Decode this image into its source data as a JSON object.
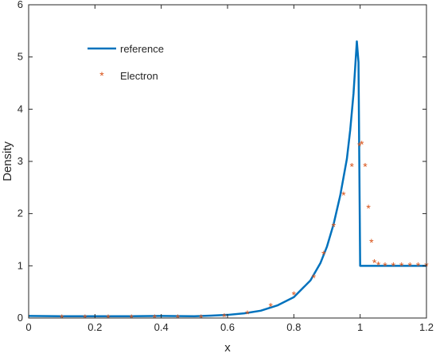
{
  "chart_data": {
    "type": "line",
    "title": "",
    "xlabel": "x",
    "ylabel": "Density",
    "xlim": [
      0,
      1.2
    ],
    "ylim": [
      0,
      6
    ],
    "xticks": [
      0,
      0.2,
      0.4,
      0.6,
      0.8,
      1,
      1.2
    ],
    "xtick_labels": [
      "0",
      "0.2",
      "0.4",
      "0.6",
      "0.8",
      "1",
      "1.2"
    ],
    "yticks": [
      0,
      1,
      2,
      3,
      4,
      5,
      6
    ],
    "ytick_labels": [
      "0",
      "1",
      "2",
      "3",
      "4",
      "5",
      "6"
    ],
    "grid": false,
    "legend_position": "top-left",
    "series": [
      {
        "name": "reference",
        "style": "line",
        "color": "#0072BD",
        "x": [
          0,
          0.1,
          0.2,
          0.3,
          0.4,
          0.5,
          0.55,
          0.6,
          0.65,
          0.7,
          0.75,
          0.8,
          0.85,
          0.88,
          0.9,
          0.92,
          0.94,
          0.96,
          0.97,
          0.98,
          0.985,
          0.99,
          0.995,
          1.0,
          1.001,
          1.2
        ],
        "y": [
          0.04,
          0.035,
          0.035,
          0.035,
          0.04,
          0.035,
          0.045,
          0.06,
          0.09,
          0.14,
          0.24,
          0.4,
          0.72,
          1.05,
          1.37,
          1.8,
          2.35,
          3.05,
          3.6,
          4.3,
          4.8,
          5.3,
          4.9,
          1.0,
          1.0,
          1.0
        ]
      },
      {
        "name": "Electron",
        "style": "marker",
        "marker": "*",
        "color": "#D95319",
        "x": [
          0.1,
          0.17,
          0.24,
          0.31,
          0.38,
          0.45,
          0.52,
          0.59,
          0.66,
          0.73,
          0.8,
          0.86,
          0.89,
          0.92,
          0.95,
          0.975,
          0.998,
          1.005,
          1.015,
          1.025,
          1.034,
          1.043,
          1.055,
          1.075,
          1.1,
          1.125,
          1.15,
          1.175,
          1.2
        ],
        "y": [
          0.0,
          0.0,
          0.0,
          0.0,
          0.0,
          0.0,
          0.0,
          0.02,
          0.08,
          0.22,
          0.44,
          0.77,
          1.22,
          1.75,
          2.35,
          2.9,
          3.3,
          3.33,
          2.9,
          2.1,
          1.45,
          1.06,
          1.01,
          1.0,
          1.0,
          1.0,
          1.0,
          1.0,
          1.0
        ]
      }
    ]
  }
}
